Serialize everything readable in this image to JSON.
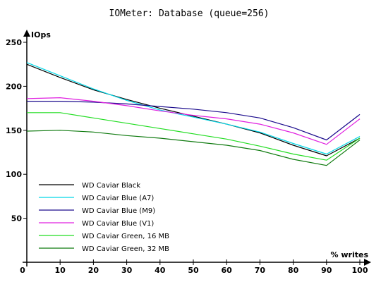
{
  "chart_data": {
    "type": "line",
    "title": "IOMeter: Database (queue=256)",
    "ylabel": "IOps",
    "xlabel": "% writes",
    "x": [
      0,
      10,
      20,
      30,
      40,
      50,
      60,
      70,
      80,
      90,
      100
    ],
    "x_ticks": [
      "0",
      "10",
      "20",
      "30",
      "40",
      "50",
      "60",
      "70",
      "80",
      "90",
      "100"
    ],
    "y_ticks": [
      "50",
      "100",
      "150",
      "200",
      "250"
    ],
    "xlim": [
      0,
      100
    ],
    "ylim": [
      0,
      250
    ],
    "grid": false,
    "legend_position": "bottom-left",
    "series": [
      {
        "name": "WD Caviar Black",
        "color": "#000000",
        "values": [
          225,
          210,
          196,
          185,
          175,
          166,
          157,
          147,
          133,
          121,
          141
        ]
      },
      {
        "name": "WD Caviar Blue (A7)",
        "color": "#00d8e8",
        "values": [
          227,
          212,
          197,
          184,
          173,
          165,
          157,
          148,
          135,
          123,
          143
        ]
      },
      {
        "name": "WD Caviar Blue (M9)",
        "color": "#1a0a8c",
        "values": [
          183,
          183,
          182,
          180,
          177,
          174,
          170,
          164,
          153,
          139,
          168
        ]
      },
      {
        "name": "WD Caviar Blue (V1)",
        "color": "#e020e0",
        "values": [
          186,
          187,
          183,
          178,
          172,
          167,
          163,
          157,
          147,
          134,
          163
        ]
      },
      {
        "name": "WD Caviar Green, 16 MB",
        "color": "#22dd22",
        "values": [
          170,
          170,
          164,
          158,
          152,
          146,
          140,
          132,
          123,
          116,
          141
        ]
      },
      {
        "name": "WD Caviar Green, 32 MB",
        "color": "#0f7a0f",
        "values": [
          149,
          150,
          148,
          144,
          141,
          137,
          133,
          127,
          117,
          110,
          139
        ]
      }
    ]
  }
}
